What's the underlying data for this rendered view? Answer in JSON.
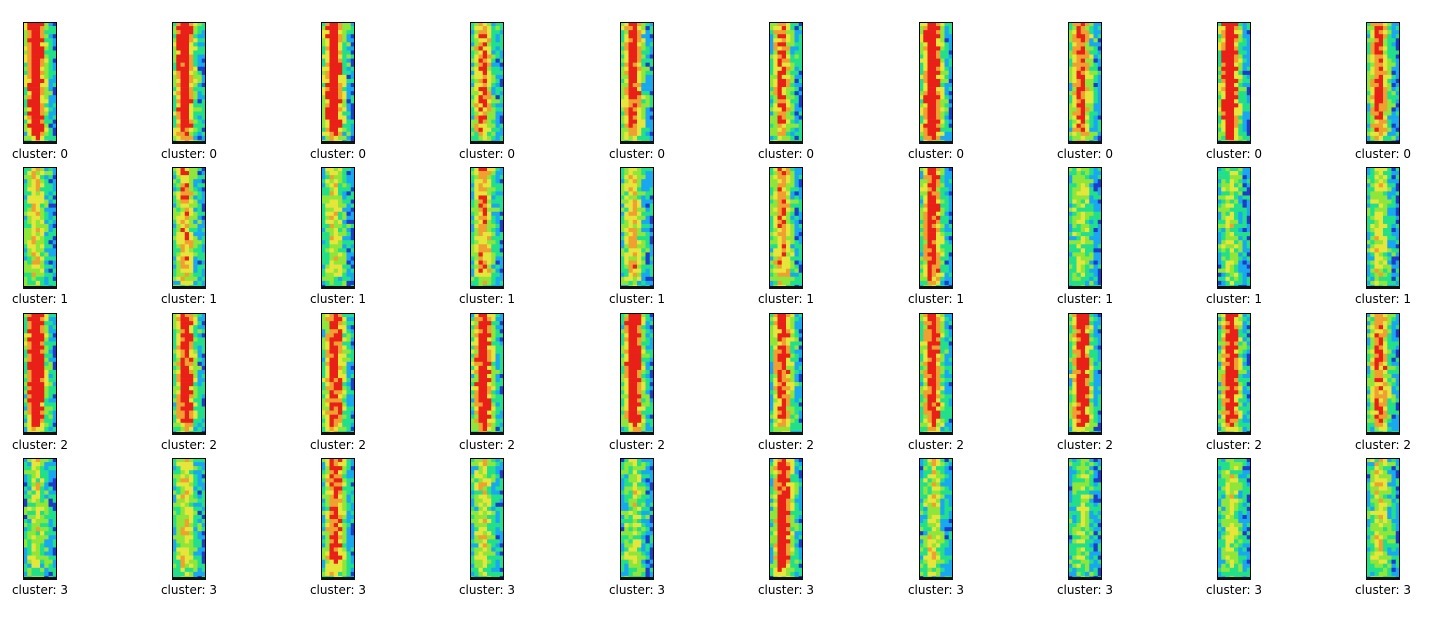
{
  "figure": {
    "label_prefix": "cluster: ",
    "rows": [
      {
        "cluster": "0",
        "panels": [
          {
            "label": "cluster: 0",
            "intensity": 0.95
          },
          {
            "label": "cluster: 0",
            "intensity": 0.85
          },
          {
            "label": "cluster: 0",
            "intensity": 0.9
          },
          {
            "label": "cluster: 0",
            "intensity": 0.6
          },
          {
            "label": "cluster: 0",
            "intensity": 0.8
          },
          {
            "label": "cluster: 0",
            "intensity": 0.65
          },
          {
            "label": "cluster: 0",
            "intensity": 0.95
          },
          {
            "label": "cluster: 0",
            "intensity": 0.7
          },
          {
            "label": "cluster: 0",
            "intensity": 0.9
          },
          {
            "label": "cluster: 0",
            "intensity": 0.7
          }
        ]
      },
      {
        "cluster": "1",
        "panels": [
          {
            "label": "cluster: 1",
            "intensity": 0.45
          },
          {
            "label": "cluster: 1",
            "intensity": 0.55
          },
          {
            "label": "cluster: 1",
            "intensity": 0.4
          },
          {
            "label": "cluster: 1",
            "intensity": 0.6
          },
          {
            "label": "cluster: 1",
            "intensity": 0.5
          },
          {
            "label": "cluster: 1",
            "intensity": 0.6
          },
          {
            "label": "cluster: 1",
            "intensity": 0.75
          },
          {
            "label": "cluster: 1",
            "intensity": 0.35
          },
          {
            "label": "cluster: 1",
            "intensity": 0.35
          },
          {
            "label": "cluster: 1",
            "intensity": 0.4
          }
        ]
      },
      {
        "cluster": "2",
        "panels": [
          {
            "label": "cluster: 2",
            "intensity": 0.95
          },
          {
            "label": "cluster: 2",
            "intensity": 0.8
          },
          {
            "label": "cluster: 2",
            "intensity": 0.8
          },
          {
            "label": "cluster: 2",
            "intensity": 0.85
          },
          {
            "label": "cluster: 2",
            "intensity": 0.9
          },
          {
            "label": "cluster: 2",
            "intensity": 0.7
          },
          {
            "label": "cluster: 2",
            "intensity": 0.8
          },
          {
            "label": "cluster: 2",
            "intensity": 0.8
          },
          {
            "label": "cluster: 2",
            "intensity": 0.8
          },
          {
            "label": "cluster: 2",
            "intensity": 0.65
          }
        ]
      },
      {
        "cluster": "3",
        "panels": [
          {
            "label": "cluster: 3",
            "intensity": 0.35
          },
          {
            "label": "cluster: 3",
            "intensity": 0.45
          },
          {
            "label": "cluster: 3",
            "intensity": 0.7
          },
          {
            "label": "cluster: 3",
            "intensity": 0.4
          },
          {
            "label": "cluster: 3",
            "intensity": 0.35
          },
          {
            "label": "cluster: 3",
            "intensity": 0.8
          },
          {
            "label": "cluster: 3",
            "intensity": 0.4
          },
          {
            "label": "cluster: 3",
            "intensity": 0.3
          },
          {
            "label": "cluster: 3",
            "intensity": 0.35
          },
          {
            "label": "cluster: 3",
            "intensity": 0.4
          }
        ]
      }
    ],
    "colormap": [
      "#1f3cc8",
      "#19a8f0",
      "#22e08a",
      "#8ee63a",
      "#e6e63a",
      "#f0a030",
      "#e82018"
    ]
  }
}
